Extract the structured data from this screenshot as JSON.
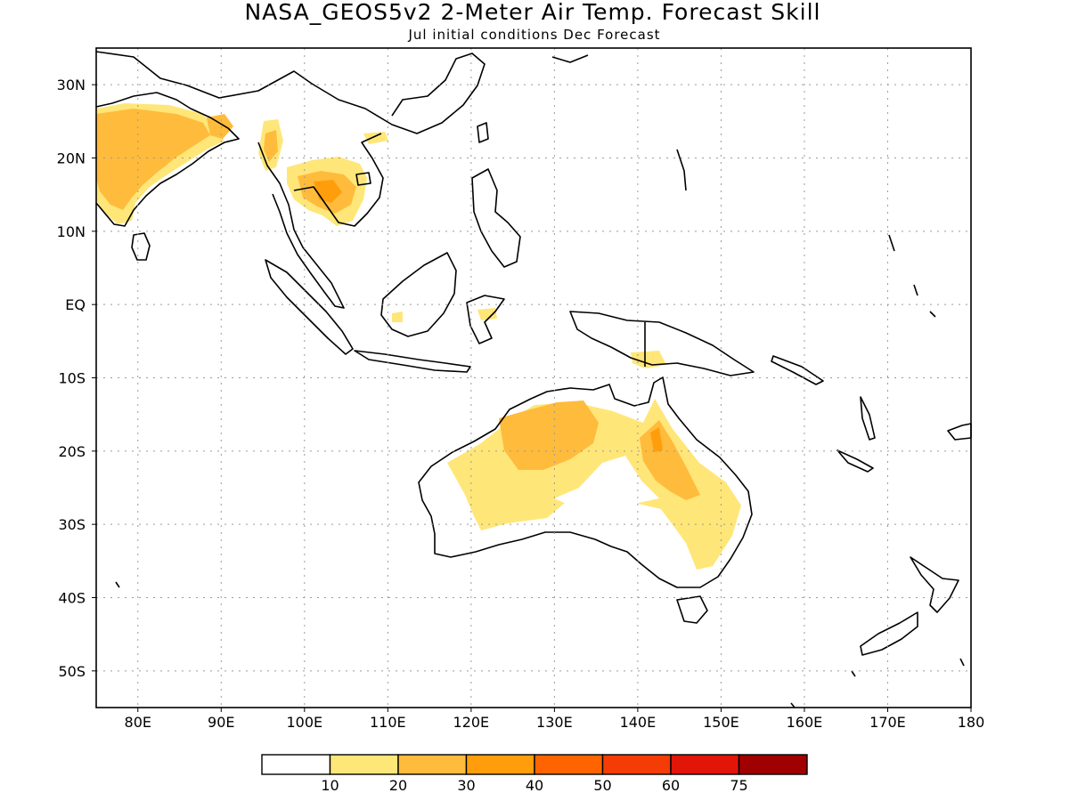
{
  "title": "NASA_GEOS5v2 2-Meter Air Temp. Forecast Skill",
  "subtitle": "Jul initial conditions  Dec Forecast",
  "map": {
    "lon_range": [
      75,
      180
    ],
    "lat_range": [
      -55,
      35
    ],
    "lon_ticks": [
      "80E",
      "90E",
      "100E",
      "110E",
      "120E",
      "130E",
      "140E",
      "150E",
      "160E",
      "170E",
      "180"
    ],
    "lat_ticks": [
      "30N",
      "20N",
      "10N",
      "EQ",
      "10S",
      "20S",
      "30S",
      "40S",
      "50S"
    ],
    "gridlines": "dotted"
  },
  "colorbar": {
    "tick_labels": [
      "10",
      "20",
      "30",
      "40",
      "50",
      "60",
      "75"
    ],
    "colors": [
      "#ffffff",
      "#ffe678",
      "#ffbb3c",
      "#ff9e0a",
      "#ff6400",
      "#f43c06",
      "#e21608",
      "#a00000"
    ]
  },
  "skill_regions": [
    {
      "region": "India",
      "level": "20-30"
    },
    {
      "region": "Indochina",
      "level": "20-30"
    },
    {
      "region": "Northern Australia",
      "level": "20-30"
    },
    {
      "region": "Central Australia",
      "level": "10-20"
    },
    {
      "region": "Eastern Australia",
      "level": "20-30"
    }
  ]
}
